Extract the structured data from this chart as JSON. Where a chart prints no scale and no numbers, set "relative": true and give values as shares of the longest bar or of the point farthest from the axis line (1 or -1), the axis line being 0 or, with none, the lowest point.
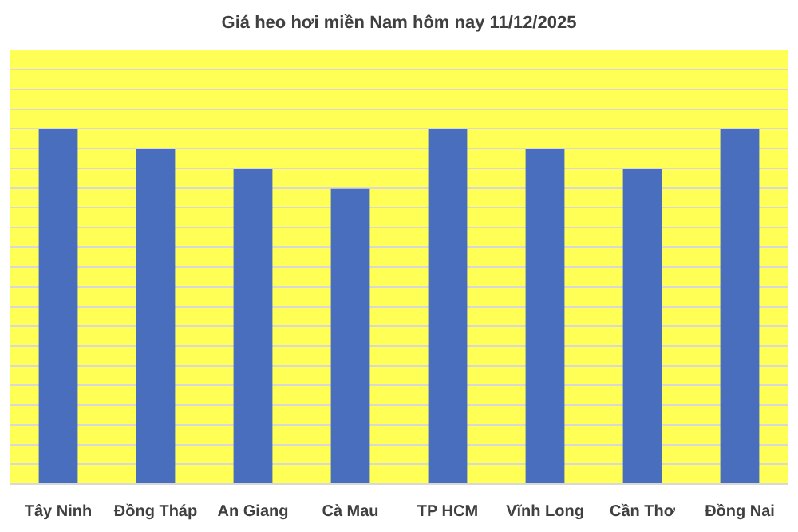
{
  "chart_data": {
    "type": "bar",
    "title": "Giá heo hơi miền Nam hôm nay 11/12/2025",
    "categories": [
      "Tây Ninh",
      "Đồng Tháp",
      "An Giang",
      "Cà Mau",
      "TP HCM",
      "Vĩnh Long",
      "Cần Thơ",
      "Đồng Nai"
    ],
    "values": [
      1,
      0.944,
      0.889,
      0.833,
      1,
      0.944,
      0.889,
      1
    ],
    "color": "#4a6ebe",
    "relative": true,
    "grid": "y"
  }
}
